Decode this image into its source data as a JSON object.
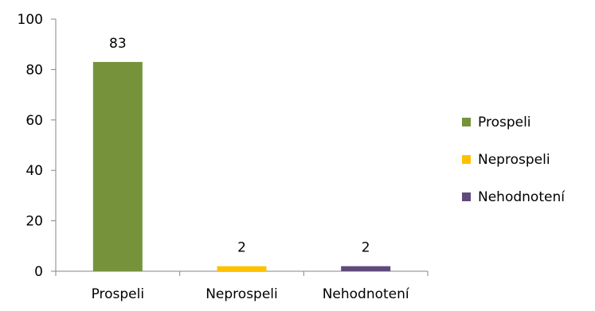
{
  "chart_data": {
    "type": "bar",
    "categories": [
      "Prospeli",
      "Neprospeli",
      "Nehodnotení"
    ],
    "values": [
      83,
      2,
      2
    ],
    "data_labels": [
      "83",
      "2",
      "2"
    ],
    "colors": [
      "#76933c",
      "#ffc000",
      "#604a7b"
    ],
    "ylim": [
      0,
      100
    ],
    "yticks": [
      0,
      20,
      40,
      60,
      80,
      100
    ],
    "ytick_labels": [
      "0",
      "20",
      "40",
      "60",
      "80",
      "100"
    ],
    "grid": false,
    "legend_position": "right",
    "legend": [
      "Prospeli",
      "Neprospeli",
      "Nehodnotení"
    ],
    "title": "",
    "xlabel": "",
    "ylabel": ""
  }
}
